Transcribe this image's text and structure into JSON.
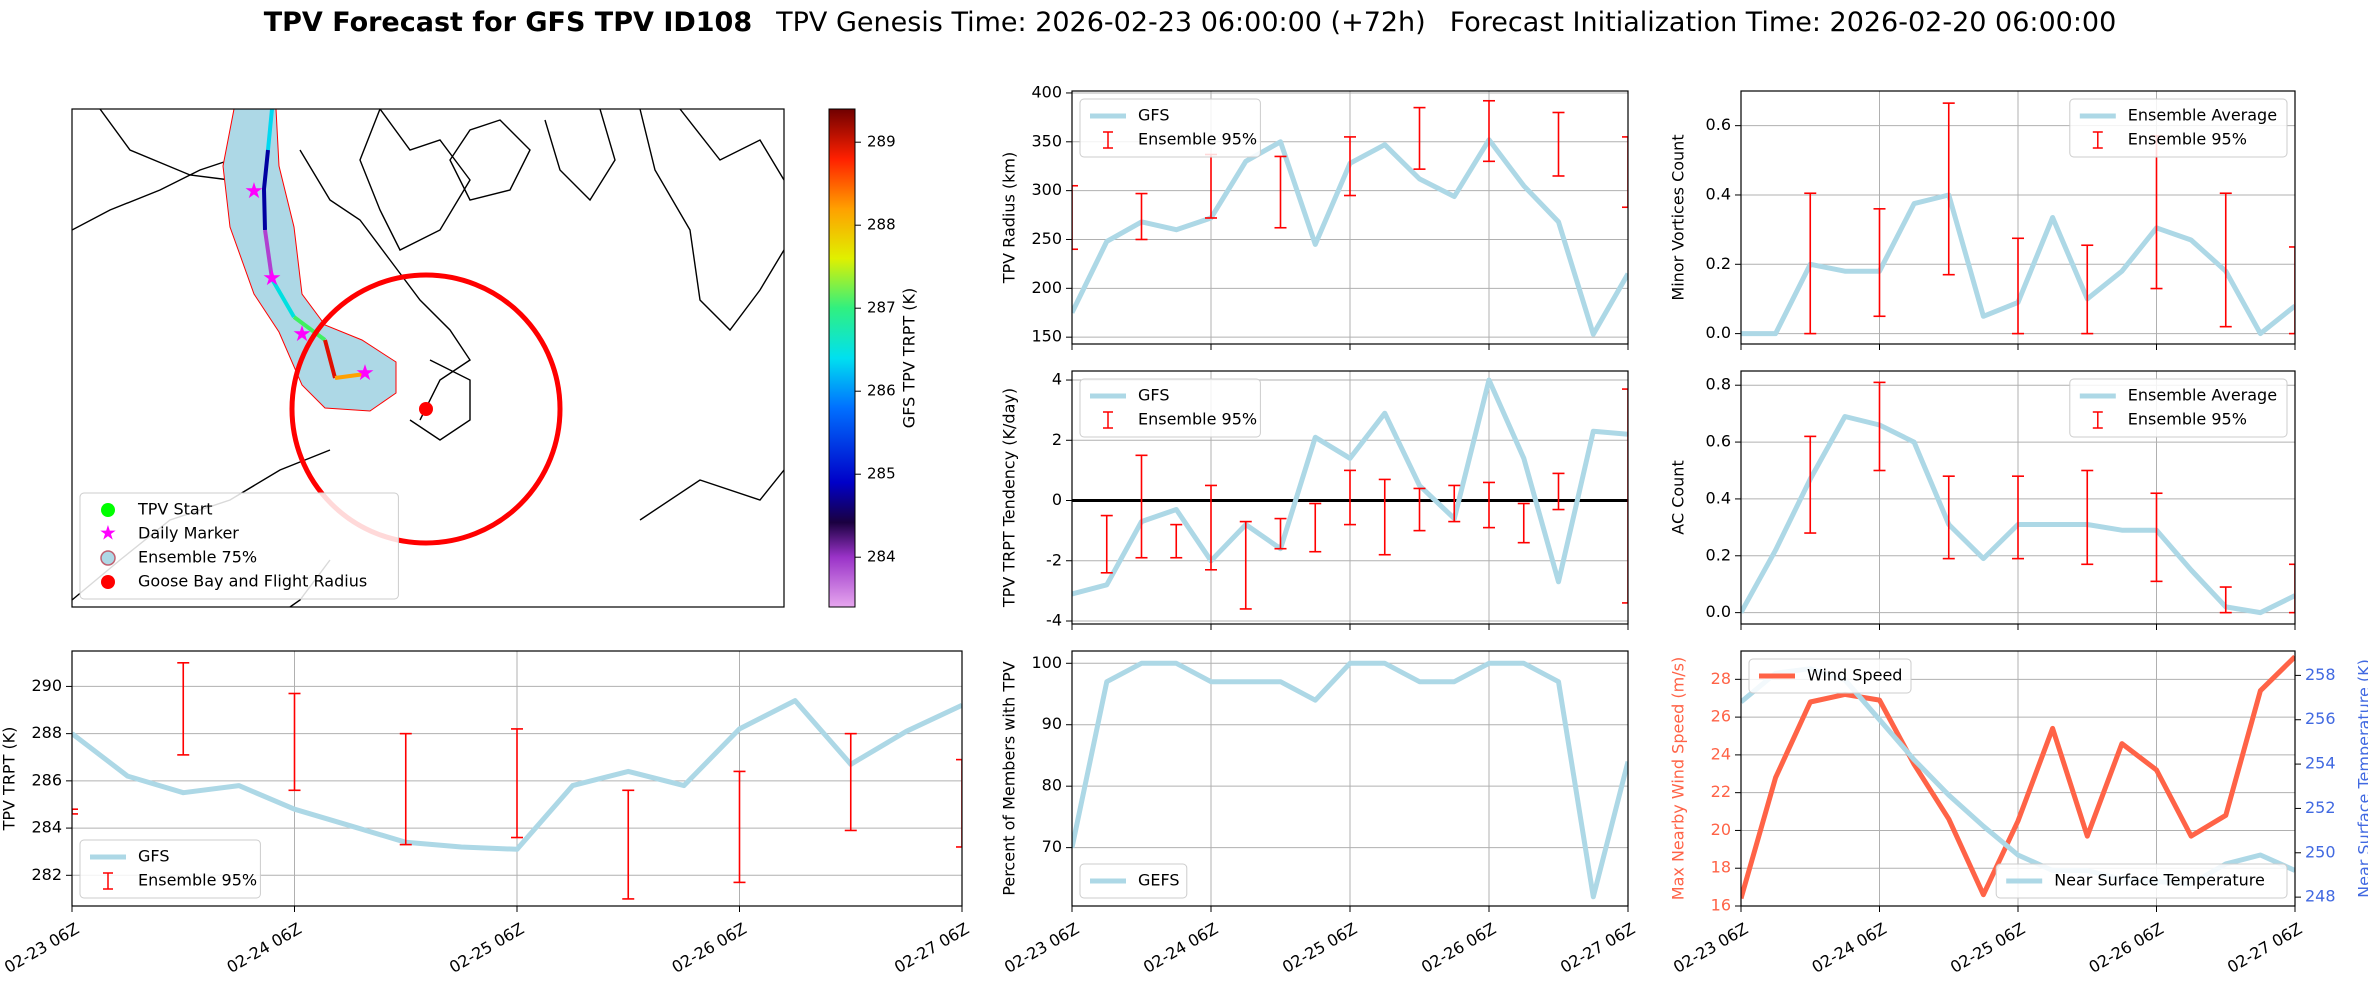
{
  "header": {
    "title": "TPV Forecast for GFS TPV ID108",
    "genesis": "TPV Genesis Time: 2026-02-23 06:00:00 (+72h)",
    "init": "Forecast Initialization Time: 2026-02-20 06:00:00"
  },
  "chart_data": [
    {
      "type": "map",
      "legend": [
        {
          "name": "TPV Start",
          "color": "#00ff00",
          "marker": "circle"
        },
        {
          "name": "Daily Marker",
          "color": "#ff00ff",
          "marker": "star"
        },
        {
          "name": "Ensemble 75%",
          "color": "#add8e6",
          "marker": "patch"
        },
        {
          "name": "Goose Bay and Flight Radius",
          "color": "#ff0000",
          "marker": "circle"
        }
      ],
      "colorbar": {
        "label": "GFS TPV TRPT (K)",
        "lim": [
          283.4,
          289.4
        ],
        "ticks": [
          284,
          285,
          286,
          287,
          288,
          289
        ]
      }
    },
    {
      "type": "line",
      "ylabel": "TPV Radius (km)",
      "grid": true,
      "legend": "upper left",
      "x": [
        0,
        6,
        12,
        18,
        24,
        30,
        36,
        42,
        48,
        54,
        60,
        66,
        72,
        78,
        84,
        90,
        96
      ],
      "xlim": [
        0,
        96
      ],
      "xticks": [
        {
          "value": 0,
          "label": "02-23 06Z"
        },
        {
          "value": 24,
          "label": "02-24 06Z"
        },
        {
          "value": 48,
          "label": "02-25 06Z"
        },
        {
          "value": 72,
          "label": "02-26 06Z"
        },
        {
          "value": 96,
          "label": "02-27 06Z"
        }
      ],
      "ylim": [
        143,
        402
      ],
      "yticks": [
        150,
        200,
        250,
        300,
        350,
        400
      ],
      "series": [
        {
          "name": "GFS",
          "color": "#add8e6",
          "values": [
            175,
            248,
            268,
            260,
            272,
            330,
            350,
            245,
            328,
            347,
            312,
            294,
            352,
            305,
            268,
            153,
            215
          ]
        }
      ],
      "errorbars": {
        "name": "Ensemble 95%",
        "color": "#ff0000",
        "x": [
          0,
          12,
          24,
          36,
          48,
          60,
          72,
          84,
          96
        ],
        "low": [
          240,
          250,
          272,
          262,
          295,
          322,
          330,
          315,
          283
        ],
        "high": [
          305,
          297,
          337,
          335,
          355,
          385,
          392,
          380,
          355
        ]
      }
    },
    {
      "type": "line",
      "ylabel": "Minor Vortices Count",
      "grid": true,
      "legend": "upper right",
      "x": [
        0,
        6,
        12,
        18,
        24,
        30,
        36,
        42,
        48,
        54,
        60,
        66,
        72,
        78,
        84,
        90,
        96
      ],
      "xlim": [
        0,
        96
      ],
      "xticks": [
        {
          "value": 0,
          "label": "02-23 06Z"
        },
        {
          "value": 24,
          "label": "02-24 06Z"
        },
        {
          "value": 48,
          "label": "02-25 06Z"
        },
        {
          "value": 72,
          "label": "02-26 06Z"
        },
        {
          "value": 96,
          "label": "02-27 06Z"
        }
      ],
      "ylim": [
        -0.03,
        0.7
      ],
      "yticks": [
        {
          "value": 0,
          "label": "0.0"
        },
        0.2,
        0.4,
        0.6
      ],
      "series": [
        {
          "name": "Ensemble Average",
          "color": "#add8e6",
          "values": [
            0,
            0,
            0.2,
            0.18,
            0.18,
            0.375,
            0.4,
            0.05,
            0.09,
            0.335,
            0.1,
            0.18,
            0.305,
            0.27,
            0.18,
            0,
            0.08
          ]
        }
      ],
      "errorbars": {
        "name": "Ensemble 95%",
        "color": "#ff0000",
        "x": [
          12,
          24,
          36,
          48,
          60,
          72,
          84,
          96
        ],
        "low": [
          0,
          0.05,
          0.17,
          0,
          0,
          0.13,
          0.02,
          0
        ],
        "high": [
          0.405,
          0.36,
          0.665,
          0.275,
          0.255,
          0.57,
          0.405,
          0.25
        ]
      }
    },
    {
      "type": "line",
      "ylabel": "TPV TRPT Tendency (K/day)",
      "grid": true,
      "legend": "upper left",
      "hline": 0,
      "x": [
        0,
        6,
        12,
        18,
        24,
        30,
        36,
        42,
        48,
        54,
        60,
        66,
        72,
        78,
        84,
        90,
        96
      ],
      "xlim": [
        0,
        96
      ],
      "xticks": [
        {
          "value": 0,
          "label": "02-23 06Z"
        },
        {
          "value": 24,
          "label": "02-24 06Z"
        },
        {
          "value": 48,
          "label": "02-25 06Z"
        },
        {
          "value": 72,
          "label": "02-26 06Z"
        },
        {
          "value": 96,
          "label": "02-27 06Z"
        }
      ],
      "ylim": [
        -4.1,
        4.3
      ],
      "yticks": [
        -4,
        -2,
        0,
        2,
        4
      ],
      "series": [
        {
          "name": "GFS",
          "color": "#add8e6",
          "values": [
            -3.1,
            -2.8,
            -0.7,
            -0.3,
            -2,
            -0.8,
            -1.6,
            2.1,
            1.4,
            2.9,
            0.5,
            -0.6,
            4.0,
            1.4,
            -2.7,
            2.3,
            2.2
          ]
        }
      ],
      "errorbars": {
        "name": "Ensemble 95%",
        "color": "#ff0000",
        "x": [
          6,
          12,
          18,
          24,
          30,
          36,
          42,
          48,
          54,
          60,
          66,
          72,
          78,
          84,
          96
        ],
        "low": [
          -2.4,
          -1.9,
          -1.9,
          -2.3,
          -3.6,
          -1.6,
          -1.7,
          -0.8,
          -1.8,
          -1,
          -0.7,
          -0.9,
          -1.4,
          -0.3,
          -3.4
        ],
        "high": [
          -0.5,
          1.5,
          -0.8,
          0.5,
          -0.7,
          -0.6,
          -0.1,
          1,
          0.7,
          0.4,
          0.5,
          0.6,
          -0.1,
          0.9,
          3.7
        ]
      }
    },
    {
      "type": "line",
      "ylabel": "AC Count",
      "grid": true,
      "legend": "upper right",
      "x": [
        0,
        6,
        12,
        18,
        24,
        30,
        36,
        42,
        48,
        54,
        60,
        66,
        72,
        78,
        84,
        90,
        96
      ],
      "xlim": [
        0,
        96
      ],
      "xticks": [
        {
          "value": 0,
          "label": "02-23 06Z"
        },
        {
          "value": 24,
          "label": "02-24 06Z"
        },
        {
          "value": 48,
          "label": "02-25 06Z"
        },
        {
          "value": 72,
          "label": "02-26 06Z"
        },
        {
          "value": 96,
          "label": "02-27 06Z"
        }
      ],
      "ylim": [
        -0.04,
        0.85
      ],
      "yticks": [
        {
          "value": 0,
          "label": "0.0"
        },
        0.2,
        0.4,
        0.6,
        0.8
      ],
      "series": [
        {
          "name": "Ensemble Average",
          "color": "#add8e6",
          "values": [
            0,
            0.22,
            0.47,
            0.69,
            0.66,
            0.6,
            0.31,
            0.19,
            0.31,
            0.31,
            0.31,
            0.29,
            0.29,
            0.15,
            0.02,
            0,
            0.06
          ]
        }
      ],
      "errorbars": {
        "name": "Ensemble 95%",
        "color": "#ff0000",
        "x": [
          12,
          24,
          36,
          48,
          60,
          72,
          84,
          96
        ],
        "low": [
          0.28,
          0.5,
          0.19,
          0.19,
          0.17,
          0.11,
          0,
          0
        ],
        "high": [
          0.62,
          0.81,
          0.48,
          0.48,
          0.5,
          0.42,
          0.09,
          0.17
        ]
      }
    },
    {
      "type": "line",
      "ylabel": "TPV TRPT (K)",
      "grid": true,
      "legend": "lower left",
      "x": [
        0,
        6,
        12,
        18,
        24,
        30,
        36,
        42,
        48,
        54,
        60,
        66,
        72,
        78,
        84,
        90,
        96
      ],
      "xlim": [
        0,
        96
      ],
      "xticks": [
        {
          "value": 0,
          "label": "02-23 06Z"
        },
        {
          "value": 24,
          "label": "02-24 06Z"
        },
        {
          "value": 48,
          "label": "02-25 06Z"
        },
        {
          "value": 72,
          "label": "02-26 06Z"
        },
        {
          "value": 96,
          "label": "02-27 06Z"
        }
      ],
      "ylim": [
        280.7,
        291.5
      ],
      "yticks": [
        282,
        284,
        286,
        288,
        290
      ],
      "series": [
        {
          "name": "GFS",
          "color": "#add8e6",
          "values": [
            288,
            286.2,
            285.5,
            285.8,
            284.8,
            284.1,
            283.4,
            283.2,
            283.1,
            285.8,
            286.4,
            285.8,
            288.2,
            289.4,
            286.7,
            288.1,
            289.2
          ]
        }
      ],
      "errorbars": {
        "name": "Ensemble 95%",
        "color": "#ff0000",
        "x": [
          0,
          12,
          24,
          36,
          48,
          60,
          72,
          84,
          96
        ],
        "low": [
          284.6,
          287.1,
          285.6,
          283.3,
          283.6,
          281,
          281.7,
          283.9,
          283.2
        ],
        "high": [
          284.8,
          291,
          289.7,
          288,
          288.2,
          285.6,
          286.4,
          288,
          286.9
        ]
      }
    },
    {
      "type": "line",
      "ylabel": "Percent of Members with TPV",
      "grid": true,
      "legend": "lower left",
      "x": [
        0,
        6,
        12,
        18,
        24,
        30,
        36,
        42,
        48,
        54,
        60,
        66,
        72,
        78,
        84,
        90,
        96
      ],
      "xlim": [
        0,
        96
      ],
      "xticks": [
        {
          "value": 0,
          "label": "02-23 06Z"
        },
        {
          "value": 24,
          "label": "02-24 06Z"
        },
        {
          "value": 48,
          "label": "02-25 06Z"
        },
        {
          "value": 72,
          "label": "02-26 06Z"
        },
        {
          "value": 96,
          "label": "02-27 06Z"
        }
      ],
      "ylim": [
        60.5,
        102
      ],
      "yticks": [
        70,
        80,
        90,
        100
      ],
      "series": [
        {
          "name": "GEFS",
          "color": "#add8e6",
          "values": [
            70,
            97,
            100,
            100,
            97,
            97,
            97,
            94,
            100,
            100,
            97,
            97,
            100,
            100,
            97,
            62,
            84
          ]
        }
      ]
    },
    {
      "type": "line",
      "ylabel": "Max Nearby Wind Speed (m/s)",
      "ylabel_color": "#ff6347",
      "y2label": "Near Surface Temperature (K)",
      "y2label_color": "#4169e1",
      "grid": true,
      "legend": "upper left",
      "legend2": "lower right",
      "x": [
        0,
        6,
        12,
        18,
        24,
        30,
        36,
        42,
        48,
        54,
        60,
        66,
        72,
        78,
        84,
        90,
        96
      ],
      "xlim": [
        0,
        96
      ],
      "xticks": [
        {
          "value": 0,
          "label": "02-23 06Z"
        },
        {
          "value": 24,
          "label": "02-24 06Z"
        },
        {
          "value": 48,
          "label": "02-25 06Z"
        },
        {
          "value": 72,
          "label": "02-26 06Z"
        },
        {
          "value": 96,
          "label": "02-27 06Z"
        }
      ],
      "ylim": [
        16,
        29.5
      ],
      "yticks": [
        16,
        18,
        20,
        22,
        24,
        26,
        28
      ],
      "y2lim": [
        247.6,
        259.1
      ],
      "y2ticks": [
        248,
        250,
        252,
        254,
        256,
        258
      ],
      "series": [
        {
          "name": "Wind Speed",
          "color": "#ff6347",
          "values": [
            16.4,
            22.8,
            26.8,
            27.2,
            26.9,
            23.5,
            20.6,
            16.6,
            20.5,
            25.4,
            19.7,
            24.6,
            23.2,
            19.7,
            20.8,
            27.4,
            29.2
          ]
        },
        {
          "name": "Near Surface Temperature",
          "color": "#add8e6",
          "axis": "y2",
          "values": [
            256.8,
            258.1,
            258.3,
            257.8,
            256,
            254.2,
            252.6,
            251.2,
            249.9,
            249.2,
            249.2,
            248.8,
            248.7,
            248.6,
            249.5,
            249.9,
            249.2
          ]
        }
      ]
    }
  ]
}
